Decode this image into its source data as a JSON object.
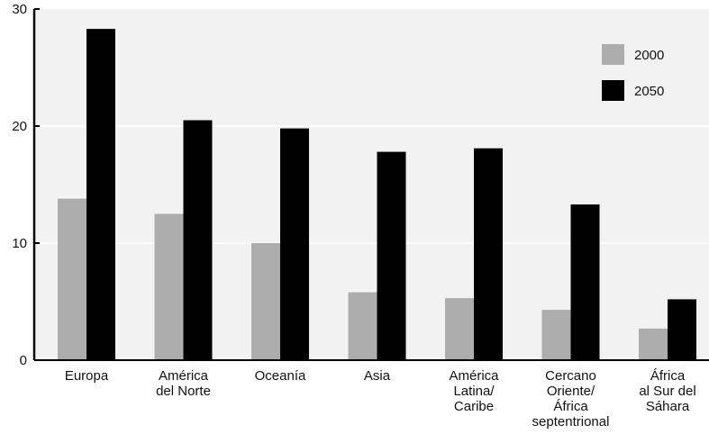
{
  "chart_data": {
    "type": "bar",
    "title": "",
    "xlabel": "",
    "ylabel": "",
    "ylim": [
      0,
      30
    ],
    "yticks": [
      0,
      10,
      20,
      30
    ],
    "grid": true,
    "legend_position": "top-right",
    "categories": [
      [
        "Europa"
      ],
      [
        "América",
        "del Norte"
      ],
      [
        "Oceanía"
      ],
      [
        "Asia"
      ],
      [
        "América",
        "Latina/",
        "Caribe"
      ],
      [
        "Cercano",
        "Oriente/",
        "África",
        "septentrional"
      ],
      [
        "África",
        "al Sur del",
        "Sáhara"
      ]
    ],
    "series": [
      {
        "name": "2000",
        "color": "#adadad",
        "values": [
          13.8,
          12.5,
          10.0,
          5.8,
          5.3,
          4.3,
          2.7
        ]
      },
      {
        "name": "2050",
        "color": "#000000",
        "values": [
          28.3,
          20.5,
          19.8,
          17.8,
          18.1,
          13.3,
          5.2
        ]
      }
    ]
  }
}
